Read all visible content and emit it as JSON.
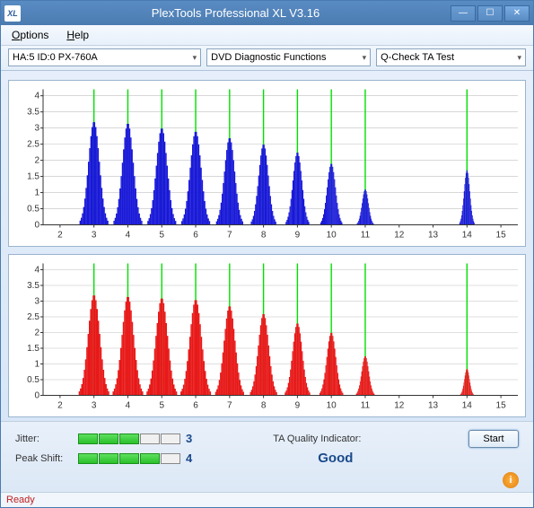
{
  "window": {
    "title": "PlexTools Professional XL V3.16",
    "icon_text": "XL"
  },
  "menu": {
    "options": "Options",
    "help": "Help"
  },
  "toolbar": {
    "drive": "HA:5 ID:0   PX-760A",
    "function": "DVD Diagnostic Functions",
    "test": "Q-Check TA Test"
  },
  "chart_top": {
    "color": "#1818d8",
    "bg": "#ffffff",
    "grid_color": "#c0c0c0",
    "green_lines": "#00e000",
    "x_min": 1.5,
    "x_max": 15.5,
    "y_min": 0,
    "y_max": 4.2,
    "x_ticks": [
      2,
      3,
      4,
      5,
      6,
      7,
      8,
      9,
      10,
      11,
      12,
      13,
      14,
      15
    ],
    "y_ticks": [
      0,
      0.5,
      1,
      1.5,
      2,
      2.5,
      3,
      3.5,
      4
    ],
    "green_x": [
      3,
      4,
      5,
      6,
      7,
      8,
      9,
      10,
      11,
      14
    ],
    "peaks": [
      {
        "c": 3,
        "h": 3.2,
        "w": 0.85
      },
      {
        "c": 4,
        "h": 3.15,
        "w": 0.85
      },
      {
        "c": 5,
        "h": 3.0,
        "w": 0.85
      },
      {
        "c": 6,
        "h": 2.9,
        "w": 0.85
      },
      {
        "c": 7,
        "h": 2.7,
        "w": 0.8
      },
      {
        "c": 8,
        "h": 2.5,
        "w": 0.75
      },
      {
        "c": 9,
        "h": 2.25,
        "w": 0.7
      },
      {
        "c": 10,
        "h": 1.9,
        "w": 0.65
      },
      {
        "c": 11,
        "h": 1.1,
        "w": 0.5
      },
      {
        "c": 14,
        "h": 1.7,
        "w": 0.45
      }
    ]
  },
  "chart_bottom": {
    "color": "#e81818",
    "bg": "#ffffff",
    "grid_color": "#c0c0c0",
    "green_lines": "#00e000",
    "x_min": 1.5,
    "x_max": 15.5,
    "y_min": 0,
    "y_max": 4.2,
    "x_ticks": [
      2,
      3,
      4,
      5,
      6,
      7,
      8,
      9,
      10,
      11,
      12,
      13,
      14,
      15
    ],
    "y_ticks": [
      0,
      0.5,
      1,
      1.5,
      2,
      2.5,
      3,
      3.5,
      4
    ],
    "green_x": [
      3,
      4,
      5,
      6,
      7,
      8,
      9,
      10,
      11,
      14
    ],
    "peaks": [
      {
        "c": 3,
        "h": 3.2,
        "w": 0.9
      },
      {
        "c": 4,
        "h": 3.15,
        "w": 0.9
      },
      {
        "c": 5,
        "h": 3.1,
        "w": 0.9
      },
      {
        "c": 6,
        "h": 3.05,
        "w": 0.9
      },
      {
        "c": 7,
        "h": 2.85,
        "w": 0.85
      },
      {
        "c": 8,
        "h": 2.6,
        "w": 0.8
      },
      {
        "c": 9,
        "h": 2.3,
        "w": 0.75
      },
      {
        "c": 10,
        "h": 2.0,
        "w": 0.7
      },
      {
        "c": 11,
        "h": 1.25,
        "w": 0.55
      },
      {
        "c": 14,
        "h": 0.85,
        "w": 0.4
      }
    ]
  },
  "metrics": {
    "jitter_label": "Jitter:",
    "jitter_bars": 5,
    "jitter_filled": 3,
    "jitter_value": "3",
    "peakshift_label": "Peak Shift:",
    "peakshift_bars": 5,
    "peakshift_filled": 4,
    "peakshift_value": "4",
    "ta_label": "TA Quality Indicator:",
    "ta_value": "Good",
    "start_label": "Start"
  },
  "status": {
    "text": "Ready"
  }
}
